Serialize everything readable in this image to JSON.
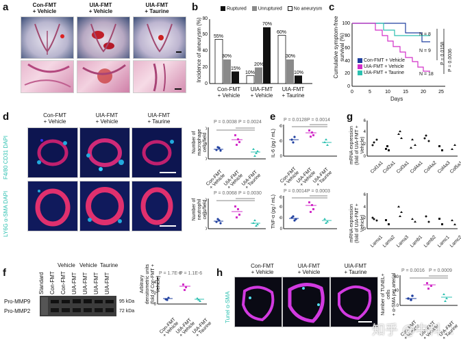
{
  "panels": {
    "a": "a",
    "b": "b",
    "c": "c",
    "d": "d",
    "e": "e",
    "f": "f",
    "g": "g",
    "h": "h"
  },
  "groups": {
    "con_vehicle": "Con-FMT\n+ Vehicle",
    "uia_vehicle": "UIA-FMT\n+ Vehicle",
    "uia_taurine": "UIA-FMT\n+ Taurine"
  },
  "rot_groups": [
    "Con-FMT\n+ Vehicle",
    "UIA-FMT\n+ Vehicle",
    "UIA-FMT\n+ Taurine"
  ],
  "panel_b": {
    "legend": [
      "Ruptured",
      "Unruptured",
      "No aneurysm"
    ],
    "ylabel": "Incidence of aneurysm (%)",
    "colors": {
      "ruptured": "#111111",
      "unruptured": "#8a8a8a",
      "none": "#ffffff"
    }
  },
  "panel_c": {
    "ylabel": "Cumulative symptom-free\nsurvival (%)",
    "xlabel": "Days",
    "legend": [
      "Con-FMT + Vehicle",
      "UIA-FMT + Vehicle",
      "UIA-FMT + Taurine"
    ],
    "n_labels": [
      "N = 8",
      "N = 9",
      "N = 18"
    ],
    "p_labels": [
      "P = 0.0158",
      "P = 0.0036"
    ],
    "colors": {
      "con": "#1f3f9f",
      "uia": "#d22fc8",
      "tau": "#2cc0b0"
    }
  },
  "panel_d": {
    "stain_top": "F4/80 CD31 DAPI",
    "stain_bottom": "LY6G α-SMA DAPI",
    "ylabel_top": "Number of\nmacrophage cells/field",
    "ylabel_bottom": "Number of neutrophil\ncells/field",
    "p_top": [
      "P = 0.0038",
      "P = 0.0024"
    ],
    "p_bottom": [
      "P = 0.0068",
      "P = 0.0030"
    ]
  },
  "panel_e": {
    "ylabel_top": "IL-6 (pg / mL)",
    "ylabel_bottom": "TNF-α (pg / mL)",
    "p_top": [
      "P = 0.0128",
      "P = 0.0014"
    ],
    "p_bottom": [
      "P = 0.0014",
      "P = 0.0003"
    ]
  },
  "panel_g": {
    "ylabel_top": "mRNA expression\n(fold of UIA-FMT + Vehicle)",
    "ylabel_bottom": "mRNA expression\n(fold of UIA-FMT + Vehicle)",
    "genes_top": [
      "Col1a1",
      "Col2a1",
      "Col3a1",
      "Col4a1",
      "Col4a2",
      "Col4a3",
      "Col5a1"
    ],
    "genes_bottom": [
      "Lama1",
      "Lama2",
      "Lama3",
      "Lamb1",
      "Lamb2",
      "Lamc1",
      "Lamc2"
    ]
  },
  "panel_f": {
    "header": [
      "Vehicle",
      "Vehicle",
      "Taurine"
    ],
    "lanes": [
      "Standard",
      "Con-FMT",
      "Con-FMT",
      "UIA-FMT",
      "UIA-FMT",
      "UIA-FMT",
      "UIA-FMT"
    ],
    "bands": [
      "Pro-MMP9",
      "Pro-MMP2"
    ],
    "kda": [
      "95 kDa",
      "72 kDa"
    ],
    "ylabel": "Arbitrary densitometric units\n(fold of Con-FMT + Vehicle)",
    "p": [
      "P = 1.7E-6",
      "P = 1.1E-6"
    ]
  },
  "panel_h": {
    "stain": "Tunel α-SMA",
    "ylabel": "Number of TUNEL+ cells\n+ α-SMA per arterial",
    "p": [
      "P = 0.0016",
      "P = 0.0009"
    ]
  },
  "watermark": "知乎 @中科…"
}
